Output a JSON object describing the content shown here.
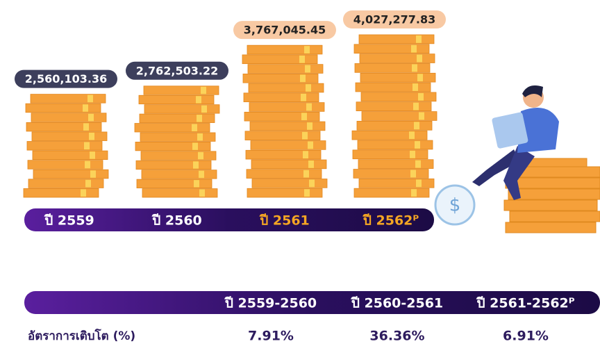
{
  "chart_data": {
    "type": "bar",
    "categories": [
      "ปี 2559",
      "ปี 2560",
      "ปี 2561",
      "ปี 2562ᴾ"
    ],
    "values": [
      2560103.36,
      2762503.22,
      3767045.45,
      4027277.83
    ],
    "value_labels": [
      "2,560,103.36",
      "2,762,503.22",
      "3,767,045.45",
      "4,027,277.83"
    ],
    "color": "#f5a03a"
  },
  "growth": {
    "label": "อัตราการเติบโต (%)",
    "periods": [
      "ปี 2559-2560",
      "ปี 2560-2561",
      "ปี 2561-2562ᴾ"
    ],
    "values": [
      "7.91%",
      "36.36%",
      "6.91%"
    ]
  }
}
